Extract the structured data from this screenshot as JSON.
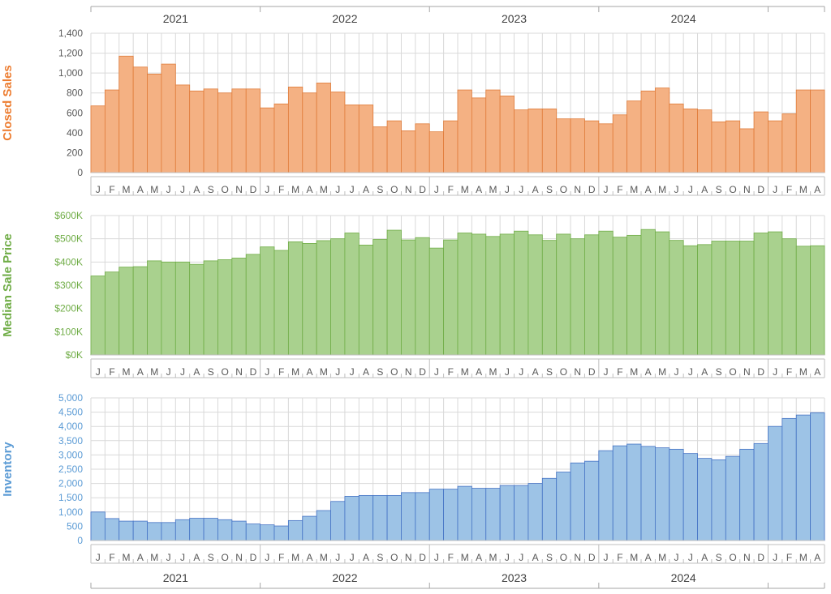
{
  "chart_data": {
    "type": "bar",
    "years": [
      "2021",
      "2022",
      "2023",
      "2024"
    ],
    "month_labels": [
      "J",
      "F",
      "M",
      "A",
      "M",
      "J",
      "J",
      "A",
      "S",
      "O",
      "N",
      "D"
    ],
    "x": [
      "Jan 2021",
      "Feb 2021",
      "Mar 2021",
      "Apr 2021",
      "May 2021",
      "Jun 2021",
      "Jul 2021",
      "Aug 2021",
      "Sep 2021",
      "Oct 2021",
      "Nov 2021",
      "Dec 2021",
      "Jan 2022",
      "Feb 2022",
      "Mar 2022",
      "Apr 2022",
      "May 2022",
      "Jun 2022",
      "Jul 2022",
      "Aug 2022",
      "Sep 2022",
      "Oct 2022",
      "Nov 2022",
      "Dec 2022",
      "Jan 2023",
      "Feb 2023",
      "Mar 2023",
      "Apr 2023",
      "May 2023",
      "Jun 2023",
      "Jul 2023",
      "Aug 2023",
      "Sep 2023",
      "Oct 2023",
      "Nov 2023",
      "Dec 2023",
      "Jan 2024",
      "Feb 2024",
      "Mar 2024",
      "Apr 2024",
      "May 2024",
      "Jun 2024",
      "Jul 2024",
      "Aug 2024",
      "Sep 2024",
      "Oct 2024",
      "Nov 2024",
      "Dec 2024",
      "Jan 2025",
      "Feb 2025",
      "Mar 2025",
      "Apr 2025"
    ],
    "panels": [
      {
        "ylabel": "Closed Sales",
        "color": "#f4b183",
        "stroke": "#e07c3a",
        "label_color": "#ed7d31",
        "tick_color": "#595959",
        "ylim": [
          0,
          1400
        ],
        "yticks": [
          "0",
          "200",
          "400",
          "600",
          "800",
          "1,000",
          "1,200",
          "1,400"
        ],
        "values": [
          670,
          830,
          1170,
          1060,
          990,
          1090,
          880,
          820,
          840,
          800,
          840,
          840,
          650,
          690,
          860,
          800,
          900,
          810,
          680,
          680,
          460,
          520,
          420,
          490,
          410,
          520,
          830,
          750,
          830,
          770,
          630,
          640,
          640,
          540,
          540,
          520,
          490,
          580,
          720,
          820,
          850,
          690,
          640,
          630,
          510,
          520,
          440,
          610,
          520,
          590,
          830,
          830
        ]
      },
      {
        "ylabel": "Median Sale Price",
        "color": "#a9d18e",
        "stroke": "#70ad47",
        "label_color": "#70ad47",
        "tick_color": "#70ad47",
        "ylim": [
          0,
          600000
        ],
        "yticks": [
          "$0K",
          "$100K",
          "$200K",
          "$300K",
          "$400K",
          "$500K",
          "$600K"
        ],
        "values": [
          340000,
          357000,
          378000,
          380000,
          405000,
          400000,
          400000,
          390000,
          405000,
          410000,
          417000,
          433000,
          465000,
          450000,
          487000,
          480000,
          492000,
          500000,
          525000,
          473000,
          497000,
          537000,
          495000,
          505000,
          460000,
          495000,
          525000,
          520000,
          510000,
          520000,
          533000,
          517000,
          493000,
          520000,
          500000,
          517000,
          533000,
          507000,
          515000,
          540000,
          530000,
          493000,
          470000,
          475000,
          490000,
          490000,
          490000,
          525000,
          530000,
          500000,
          468000,
          470000
        ]
      },
      {
        "ylabel": "Inventory",
        "color": "#9dc3e6",
        "stroke": "#4472c4",
        "label_color": "#5b9bd5",
        "tick_color": "#5b9bd5",
        "ylim": [
          0,
          5000
        ],
        "yticks": [
          "0",
          "500",
          "1,000",
          "1,500",
          "2,000",
          "2,500",
          "3,000",
          "3,500",
          "4,000",
          "4,500",
          "5,000"
        ],
        "values": [
          1000,
          770,
          680,
          680,
          630,
          630,
          730,
          780,
          780,
          730,
          680,
          580,
          550,
          510,
          700,
          850,
          1050,
          1370,
          1550,
          1580,
          1580,
          1580,
          1680,
          1680,
          1800,
          1800,
          1900,
          1830,
          1830,
          1930,
          1930,
          2000,
          2180,
          2400,
          2720,
          2780,
          3150,
          3320,
          3380,
          3300,
          3250,
          3200,
          3050,
          2880,
          2830,
          2950,
          3200,
          3400,
          4000,
          4280,
          4400,
          4480
        ]
      }
    ]
  }
}
